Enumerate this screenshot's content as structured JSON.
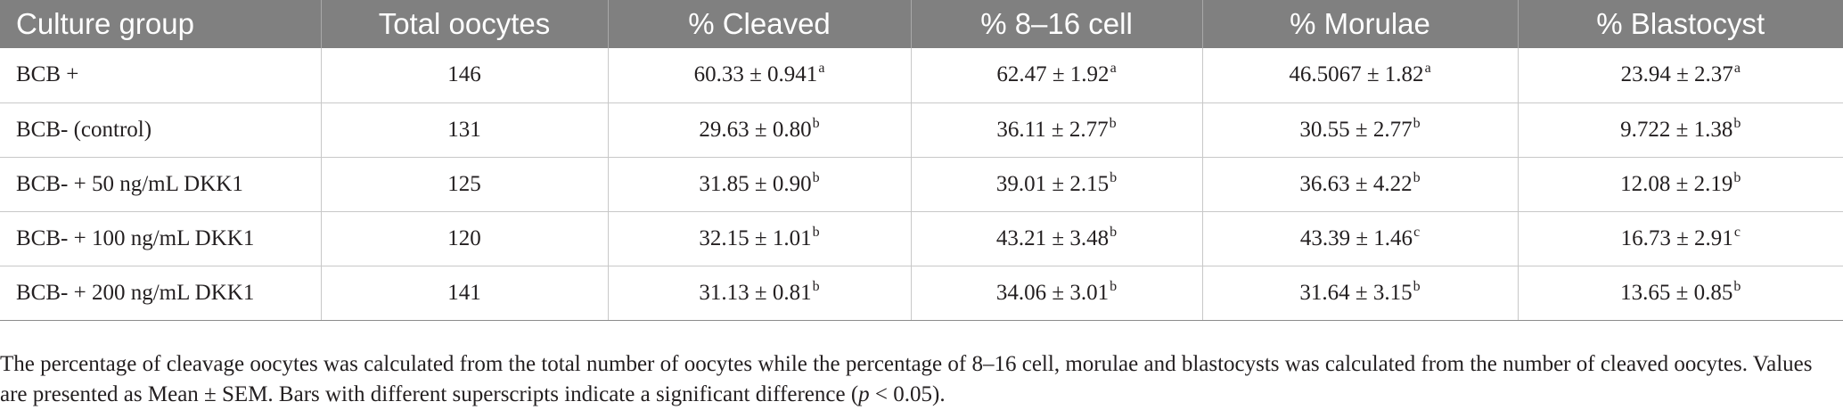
{
  "table": {
    "headers": [
      "Culture group",
      "Total oocytes",
      "% Cleaved",
      "% 8–16 cell",
      "% Morulae",
      "% Blastocyst"
    ],
    "rows": [
      {
        "group": "BCB +",
        "total": "146",
        "cleaved": "60.33 ± 0.941",
        "cleaved_sup": "a",
        "cell816": "62.47 ± 1.92",
        "cell816_sup": "a",
        "morulae": "46.5067 ± 1.82",
        "morulae_sup": "a",
        "blastocyst": "23.94 ± 2.37",
        "blastocyst_sup": "a"
      },
      {
        "group": "BCB- (control)",
        "total": "131",
        "cleaved": "29.63 ± 0.80",
        "cleaved_sup": "b",
        "cell816": "36.11 ± 2.77",
        "cell816_sup": "b",
        "morulae": "30.55 ± 2.77",
        "morulae_sup": "b",
        "blastocyst": "9.722 ± 1.38",
        "blastocyst_sup": "b"
      },
      {
        "group": "BCB- + 50 ng/mL DKK1",
        "total": "125",
        "cleaved": "31.85 ± 0.90",
        "cleaved_sup": "b",
        "cell816": "39.01 ± 2.15",
        "cell816_sup": "b",
        "morulae": "36.63 ± 4.22",
        "morulae_sup": "b",
        "blastocyst": "12.08 ± 2.19",
        "blastocyst_sup": "b"
      },
      {
        "group": "BCB- + 100 ng/mL DKK1",
        "total": "120",
        "cleaved": "32.15 ± 1.01",
        "cleaved_sup": "b",
        "cell816": "43.21 ± 3.48",
        "cell816_sup": "b",
        "morulae": "43.39 ± 1.46",
        "morulae_sup": "c",
        "blastocyst": "16.73 ± 2.91",
        "blastocyst_sup": "c"
      },
      {
        "group": "BCB- + 200 ng/mL DKK1",
        "total": "141",
        "cleaved": "31.13 ± 0.81",
        "cleaved_sup": "b",
        "cell816": "34.06 ± 3.01",
        "cell816_sup": "b",
        "morulae": "31.64 ± 3.15",
        "morulae_sup": "b",
        "blastocyst": "13.65 ± 0.85",
        "blastocyst_sup": "b"
      }
    ]
  },
  "footnote": {
    "part1": "The percentage of cleavage oocytes was calculated from the total number of oocytes while the percentage of 8–16 cell, morulae and blastocysts was calculated from the number of cleaved oocytes. Values are presented as Mean ± SEM. Bars with different superscripts indicate a significant difference (",
    "p_symbol": "p",
    "part2": " < 0.05)."
  },
  "colors": {
    "header_bg": "#808080",
    "header_text": "#ffffff",
    "body_text": "#231f20",
    "rule": "#c8c8c8"
  }
}
